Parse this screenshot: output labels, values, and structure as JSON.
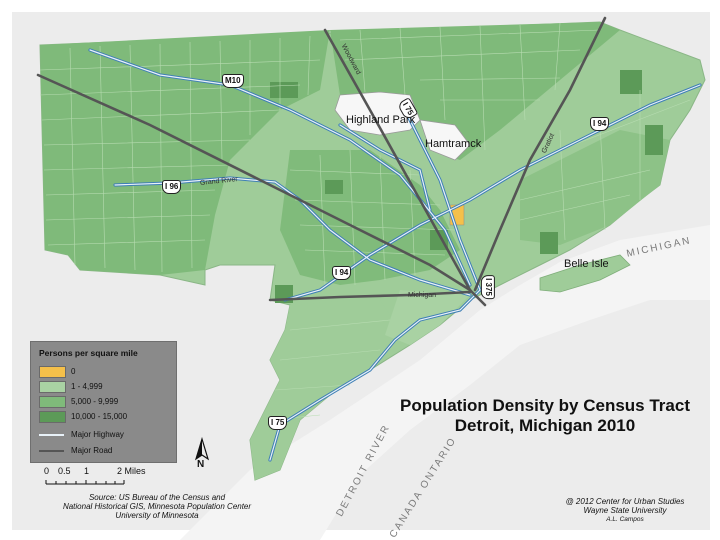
{
  "title": {
    "line1": "Population Density by Census Tract",
    "line2": "Detroit, Michigan 2010"
  },
  "colors": {
    "background": "#ffffff",
    "outside_land": "#e9e9e9",
    "water": "#f2f2f2",
    "class_0": "#f5c04a",
    "class_1": "#a9d2a3",
    "class_2": "#7fba7a",
    "class_3": "#5c9a58",
    "major_highway": "#e8f1f8",
    "major_road": "#555555"
  },
  "legend": {
    "title": "Persons per square mile",
    "items": [
      {
        "label": "0",
        "type": "fill",
        "color": "#f5c04a"
      },
      {
        "label": "1 - 4,999",
        "type": "fill",
        "color": "#a9d2a3"
      },
      {
        "label": "5,000 - 9,999",
        "type": "fill",
        "color": "#7fba7a"
      },
      {
        "label": "10,000 - 15,000",
        "type": "fill",
        "color": "#5c9a58"
      },
      {
        "label": "Major Highway",
        "type": "line",
        "color": "#e8f1f8"
      },
      {
        "label": "Major Road",
        "type": "line",
        "color": "#555555"
      }
    ]
  },
  "places": {
    "highland_park": "Highland Park",
    "hamtramck": "Hamtramck",
    "belle_isle": "Belle Isle"
  },
  "water_labels": {
    "detroit_river": "DETROIT RIVER",
    "canada": "CANADA ONTARIO",
    "michigan": "MICHIGAN"
  },
  "roads": {
    "woodward": "Woodward",
    "gratiot": "Gratiot",
    "grand_river": "Grand River",
    "michigan_ave": "Michigan"
  },
  "highways": {
    "m10": "M10",
    "i75_north": "I 75",
    "i94_east": "I 94",
    "i96": "I 96",
    "i94_west": "I 94",
    "i375": "I 375",
    "i75_south": "I 75"
  },
  "scale_bar": {
    "labels": [
      "0",
      "0.5",
      "1",
      "2 Miles"
    ]
  },
  "north_arrow": "N",
  "source": {
    "line1": "Source: US Bureau of the Census and",
    "line2": "National Historical GIS, Minnesota Population Center",
    "line3": "University of Minnesota"
  },
  "credit": {
    "line1": "@ 2012 Center for Urban Studies",
    "line2": "Wayne State University",
    "line3": "A.L. Campos"
  }
}
